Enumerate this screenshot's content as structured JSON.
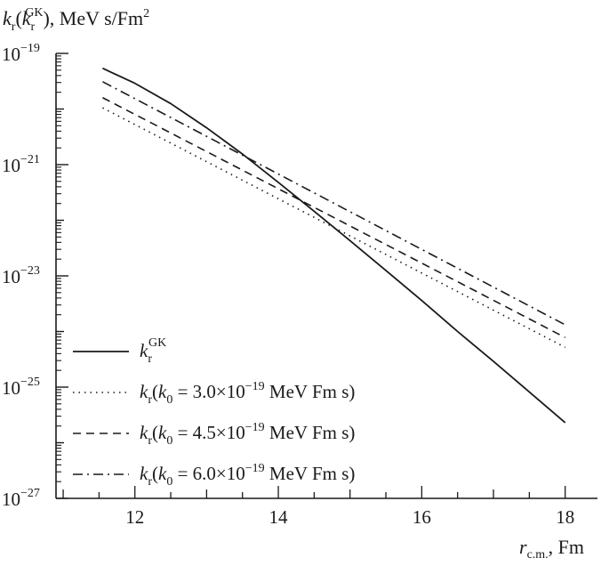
{
  "chart_data": {
    "type": "line",
    "ylabel": "kr(krGK), MeV s/Fm2",
    "ylabel_parts": {
      "k": "k",
      "sub1": "r",
      "open": "(",
      "k2": "k",
      "sub2": "r",
      "sup2": "GK",
      "close": "), MeV s/Fm",
      "sup_end": "2"
    },
    "xlabel": "rc.m., Fm",
    "xlabel_parts": {
      "r": "r",
      "sub": "c.m.",
      "rest": ", Fm"
    },
    "y_scale": "log",
    "xlim": [
      10.9,
      18.45
    ],
    "ylim": [
      1e-27,
      1e-19
    ],
    "x_ticks": [
      "12",
      "14",
      "16",
      "18"
    ],
    "y_ticks": [
      {
        "base": "10",
        "exp": "−19"
      },
      {
        "base": "10",
        "exp": "−21"
      },
      {
        "base": "10",
        "exp": "−23"
      },
      {
        "base": "10",
        "exp": "−25"
      },
      {
        "base": "10",
        "exp": "−27"
      }
    ],
    "grid": false,
    "legend_position": "bottom-left",
    "series": [
      {
        "name": "krGK",
        "legend": {
          "k": "k",
          "sub": "r",
          "sup": "GK"
        },
        "style": "solid",
        "x": [
          11.55,
          12.0,
          12.5,
          13.0,
          13.5,
          14.0,
          14.5,
          15.0,
          15.5,
          16.0,
          16.5,
          17.0,
          17.5,
          18.0
        ],
        "y": [
          5.4e-20,
          2.9e-20,
          1.25e-20,
          4.6e-21,
          1.55e-21,
          4.8e-22,
          1.45e-22,
          4.3e-23,
          1.25e-23,
          3.6e-24,
          1e-24,
          2.9e-25,
          8.2e-26,
          2.3e-26
        ]
      },
      {
        "name": "kr(k0 = 3.0×10−19 MeV Fm s)",
        "legend": {
          "k": "k",
          "sub": "r",
          "args": "(",
          "k0": "k",
          "k0sub": "0",
          "eq": " = 3.0×10",
          "exp": "−19",
          "unit": " MeV Fm s)"
        },
        "style": "dotted",
        "x": [
          11.55,
          18.0
        ],
        "y": [
          1.05e-20,
          5.2e-25
        ]
      },
      {
        "name": "kr(k0 = 4.5×10−19 MeV Fm s)",
        "legend": {
          "k": "k",
          "sub": "r",
          "args": "(",
          "k0": "k",
          "k0sub": "0",
          "eq": " = 4.5×10",
          "exp": "−19",
          "unit": " MeV Fm s)"
        },
        "style": "dashed",
        "x": [
          11.55,
          18.0
        ],
        "y": [
          1.6e-20,
          7.8e-25
        ]
      },
      {
        "name": "kr(k0 = 6.0×10−19 MeV Fm s)",
        "legend": {
          "k": "k",
          "sub": "r",
          "args": "(",
          "k0": "k",
          "k0sub": "0",
          "eq": " = 6.0×10",
          "exp": "−19",
          "unit": " MeV Fm s)"
        },
        "style": "dashdot",
        "x": [
          11.55,
          18.0
        ],
        "y": [
          3.1e-20,
          1.32e-24
        ]
      }
    ]
  }
}
